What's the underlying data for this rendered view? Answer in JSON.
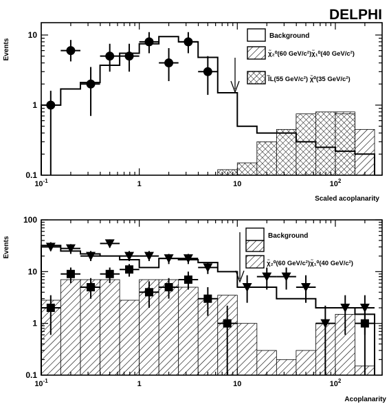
{
  "header": {
    "experiment": "DELPHI"
  },
  "colors": {
    "ink": "#000000",
    "paper": "#ffffff"
  },
  "chart_data": [
    {
      "type": "histogram",
      "log_x": true,
      "log_y": true,
      "xlim": [
        0.1,
        300
      ],
      "ylim": [
        0.1,
        15
      ],
      "ylabel": "Events",
      "xlabel": "Scaled acoplanarity",
      "x_ticks": [
        "10^-1",
        "1",
        "10",
        "10^2"
      ],
      "y_ticks": [
        "0.1",
        "1",
        "10"
      ],
      "legend": [
        "Background",
        "χ̃₂⁰(60 GeV/c²)χ̃₁⁰(40 GeV/c²)",
        "l̃̃L(55 GeV/c²) χ̃⁰(35 GeV/c²)"
      ],
      "arrow_x": 10,
      "bin_edges": [
        0.1,
        0.158,
        0.251,
        0.398,
        0.631,
        1.0,
        1.585,
        2.512,
        3.981,
        6.31,
        10,
        15.85,
        25.12,
        39.81,
        63.1,
        100,
        158.5,
        251.2
      ],
      "series": [
        {
          "name": "Background",
          "style": "outline",
          "values": [
            1.0,
            1.7,
            2.1,
            3.7,
            5.5,
            7.5,
            9.5,
            8.0,
            4.8,
            1.5,
            0.5,
            0.4,
            0.4,
            0.3,
            0.25,
            0.22,
            0.2
          ]
        },
        {
          "name": "χ̃₂⁰(60 GeV/c²)χ̃₁⁰(40 GeV/c²)",
          "style": "hatch",
          "values": [
            0,
            0,
            0,
            0,
            0,
            0,
            0,
            0,
            0,
            0,
            0,
            0.1,
            0.3,
            0.55,
            0.7,
            0.8,
            0.45
          ]
        },
        {
          "name": "l̃̃L(55 GeV/c²) χ̃⁰(35 GeV/c²)",
          "style": "crosshatch",
          "values": [
            0,
            0,
            0,
            0,
            0,
            0,
            0,
            0,
            0.1,
            0.12,
            0.15,
            0.3,
            0.45,
            0.75,
            0.8,
            0.75,
            0
          ]
        }
      ],
      "data_points": [
        {
          "x": 0.125,
          "y": 1.0,
          "ylo": 0.1,
          "yhi": 1.6,
          "xlo": 0.1,
          "xhi": 0.158
        },
        {
          "x": 0.2,
          "y": 6.0,
          "ylo": 4.2,
          "yhi": 8.5,
          "xlo": 0.158,
          "xhi": 0.251
        },
        {
          "x": 0.32,
          "y": 2.0,
          "ylo": 0.7,
          "yhi": 3.5,
          "xlo": 0.251,
          "xhi": 0.398
        },
        {
          "x": 0.5,
          "y": 5.0,
          "ylo": 3.0,
          "yhi": 7.5,
          "xlo": 0.398,
          "xhi": 0.631
        },
        {
          "x": 0.79,
          "y": 5.0,
          "ylo": 3.0,
          "yhi": 7.5,
          "xlo": 0.631,
          "xhi": 1.0
        },
        {
          "x": 1.26,
          "y": 8.0,
          "ylo": 5.5,
          "yhi": 11.0,
          "xlo": 1.0,
          "xhi": 1.585
        },
        {
          "x": 2.0,
          "y": 4.0,
          "ylo": 2.2,
          "yhi": 6.5,
          "xlo": 1.585,
          "xhi": 2.512
        },
        {
          "x": 3.16,
          "y": 8.0,
          "ylo": 5.5,
          "yhi": 11.0,
          "xlo": 2.512,
          "xhi": 3.981
        },
        {
          "x": 5.0,
          "y": 3.0,
          "ylo": 1.4,
          "yhi": 5.0,
          "xlo": 3.981,
          "xhi": 6.31
        }
      ]
    },
    {
      "type": "histogram",
      "log_x": true,
      "log_y": true,
      "xlim": [
        0.1,
        300
      ],
      "ylim": [
        0.1,
        100
      ],
      "ylabel": "Events",
      "xlabel": "Acoplanarity",
      "x_ticks": [
        "10^-1",
        "1",
        "10",
        "10^2"
      ],
      "y_ticks": [
        "0.1",
        "1",
        "10",
        "100"
      ],
      "legend": [
        "Background",
        "χ̃₂⁰(60 GeV/c²)χ̃₁⁰(40 GeV/c²)"
      ],
      "arrow_x": 10,
      "bin_edges": [
        0.1,
        0.158,
        0.251,
        0.398,
        0.631,
        1.0,
        1.585,
        2.512,
        3.981,
        6.31,
        10,
        15.85,
        25.12,
        39.81,
        63.1,
        100,
        158.5,
        251.2
      ],
      "series": [
        {
          "name": "Background",
          "style": "outline",
          "values": [
            32,
            25,
            22,
            20,
            17,
            12,
            18,
            17,
            15,
            10,
            5,
            5,
            3,
            3,
            2,
            2,
            1.5
          ]
        },
        {
          "name": "χ̃₂⁰(60 GeV/c²)χ̃₁⁰(40 GeV/c²)",
          "style": "hatch",
          "values": [
            2.8,
            7,
            7,
            7,
            2.8,
            7,
            7,
            5,
            3,
            3.5,
            1,
            0.3,
            0.2,
            0.3,
            1,
            1.5,
            0.15
          ]
        }
      ],
      "data_points": [
        {
          "series": "triangle",
          "x": 0.125,
          "y": 30,
          "ylo": 25,
          "yhi": 37,
          "xlo": 0.1,
          "xhi": 0.158
        },
        {
          "series": "triangle",
          "x": 0.2,
          "y": 28,
          "ylo": 22,
          "yhi": 34,
          "xlo": 0.158,
          "xhi": 0.251
        },
        {
          "series": "triangle",
          "x": 0.32,
          "y": 20,
          "ylo": 16,
          "yhi": 25,
          "xlo": 0.251,
          "xhi": 0.398
        },
        {
          "series": "triangle",
          "x": 0.5,
          "y": 35,
          "ylo": 29,
          "yhi": 42,
          "xlo": 0.398,
          "xhi": 0.631
        },
        {
          "series": "triangle",
          "x": 0.79,
          "y": 20,
          "ylo": 16,
          "yhi": 25,
          "xlo": 0.631,
          "xhi": 1.0
        },
        {
          "series": "triangle",
          "x": 1.26,
          "y": 20,
          "ylo": 16,
          "yhi": 25,
          "xlo": 1.0,
          "xhi": 1.585
        },
        {
          "series": "triangle",
          "x": 2.0,
          "y": 18,
          "ylo": 14,
          "yhi": 22,
          "xlo": 1.585,
          "xhi": 2.512
        },
        {
          "series": "triangle",
          "x": 3.16,
          "y": 18,
          "ylo": 14,
          "yhi": 22,
          "xlo": 2.512,
          "xhi": 3.981
        },
        {
          "series": "triangle",
          "x": 5.0,
          "y": 12,
          "ylo": 9,
          "yhi": 15,
          "xlo": 3.981,
          "xhi": 6.31
        },
        {
          "series": "triangle",
          "x": 12.6,
          "y": 5,
          "ylo": 2.5,
          "yhi": 8.5,
          "xlo": 10,
          "xhi": 15.85
        },
        {
          "series": "triangle",
          "x": 20,
          "y": 8,
          "ylo": 4.5,
          "yhi": 12,
          "xlo": 15.85,
          "xhi": 25.12
        },
        {
          "series": "triangle",
          "x": 31.6,
          "y": 8,
          "ylo": 4.5,
          "yhi": 12,
          "xlo": 25.12,
          "xhi": 39.81
        },
        {
          "series": "triangle",
          "x": 50,
          "y": 5,
          "ylo": 2.5,
          "yhi": 8.5,
          "xlo": 39.81,
          "xhi": 63.1
        },
        {
          "series": "triangle",
          "x": 79,
          "y": 1,
          "ylo": 0.1,
          "yhi": 2.2,
          "xlo": 63.1,
          "xhi": 100
        },
        {
          "series": "triangle",
          "x": 126,
          "y": 2,
          "ylo": 0.6,
          "yhi": 3.5,
          "xlo": 100,
          "xhi": 158.5
        },
        {
          "series": "triangle",
          "x": 200,
          "y": 2,
          "ylo": 0.6,
          "yhi": 3.5,
          "xlo": 158.5,
          "xhi": 251.2
        },
        {
          "series": "square",
          "x": 0.125,
          "y": 2,
          "ylo": 0.6,
          "yhi": 3.5,
          "xlo": 0.1,
          "xhi": 0.158
        },
        {
          "series": "square",
          "x": 0.2,
          "y": 9,
          "ylo": 6,
          "yhi": 12,
          "xlo": 0.158,
          "xhi": 0.251
        },
        {
          "series": "square",
          "x": 0.32,
          "y": 5,
          "ylo": 3,
          "yhi": 7.5,
          "xlo": 0.251,
          "xhi": 0.398
        },
        {
          "series": "square",
          "x": 0.5,
          "y": 9,
          "ylo": 6,
          "yhi": 12,
          "xlo": 0.398,
          "xhi": 0.631
        },
        {
          "series": "square",
          "x": 0.79,
          "y": 11,
          "ylo": 8,
          "yhi": 14,
          "xlo": 0.631,
          "xhi": 1.0
        },
        {
          "series": "square",
          "x": 1.26,
          "y": 4,
          "ylo": 2,
          "yhi": 6.5,
          "xlo": 1.0,
          "xhi": 1.585
        },
        {
          "series": "square",
          "x": 2.0,
          "y": 5,
          "ylo": 3,
          "yhi": 7.5,
          "xlo": 1.585,
          "xhi": 2.512
        },
        {
          "series": "square",
          "x": 3.16,
          "y": 7,
          "ylo": 4.5,
          "yhi": 10,
          "xlo": 2.512,
          "xhi": 3.981
        },
        {
          "series": "square",
          "x": 5.0,
          "y": 3,
          "ylo": 1.4,
          "yhi": 5,
          "xlo": 3.981,
          "xhi": 6.31
        },
        {
          "series": "square",
          "x": 7.9,
          "y": 1,
          "ylo": 0.1,
          "yhi": 2.2,
          "xlo": 6.31,
          "xhi": 10
        },
        {
          "series": "square",
          "x": 200,
          "y": 1,
          "ylo": 0.1,
          "yhi": 2.2,
          "xlo": 158.5,
          "xhi": 251.2
        }
      ]
    }
  ]
}
